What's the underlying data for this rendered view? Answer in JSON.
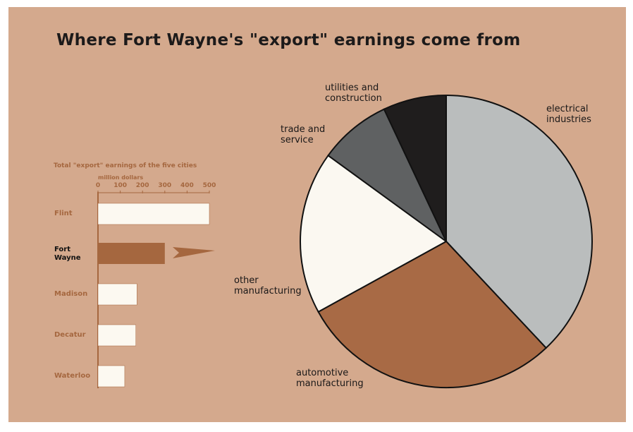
{
  "title": "Where Fort Wayne's \"export\" earnings come from",
  "chart_data": [
    {
      "type": "bar",
      "orientation": "horizontal",
      "title": "Total \"export\" earnings of the five cities",
      "x_label": "million dollars",
      "categories": [
        "Flint",
        "Fort Wayne",
        "Madison",
        "Decatur",
        "Waterloo"
      ],
      "values": [
        500,
        300,
        175,
        170,
        120
      ],
      "colors": [
        "#fcf9f1",
        "#a5673f",
        "#fcf9f1",
        "#fcf9f1",
        "#fcf9f1"
      ],
      "xlim": [
        0,
        500
      ],
      "xticks": [
        0,
        100,
        200,
        300,
        400,
        500
      ]
    },
    {
      "type": "pie",
      "categories": [
        "electrical industries",
        "automotive manufacturing",
        "other manufacturing",
        "trade and service",
        "utilities and construction"
      ],
      "values": [
        38,
        29,
        18,
        8,
        7
      ],
      "colors": [
        "#babdbd",
        "#a86a45",
        "#fbf8f1",
        "#5f6162",
        "#1f1d1d"
      ]
    }
  ]
}
